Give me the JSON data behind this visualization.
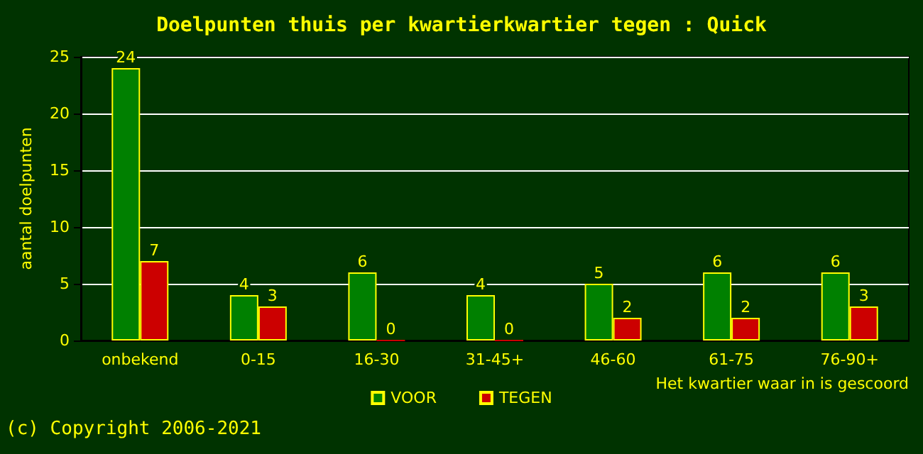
{
  "chart_data": {
    "type": "bar",
    "title": "Doelpunten thuis per kwartierkwartier tegen : Quick",
    "xlabel": "Het kwartier waar in is gescoord",
    "ylabel": "aantal doelpunten",
    "annotations": [
      "(c) Copyright 2006-2021"
    ],
    "categories": [
      "onbekend",
      "0-15",
      "16-30",
      "31-45+",
      "46-60",
      "61-75",
      "76-90+"
    ],
    "series": [
      {
        "name": "VOOR",
        "color": "#008000",
        "values": [
          24,
          4,
          6,
          4,
          5,
          6,
          6
        ]
      },
      {
        "name": "TEGEN",
        "color": "#cc0000",
        "values": [
          7,
          3,
          0,
          0,
          2,
          2,
          3
        ]
      }
    ],
    "ylim": [
      0,
      25
    ],
    "yticks": [
      0,
      5,
      10,
      15,
      20,
      25
    ],
    "grid": "y",
    "legend": "bottom",
    "data_labels": true
  }
}
